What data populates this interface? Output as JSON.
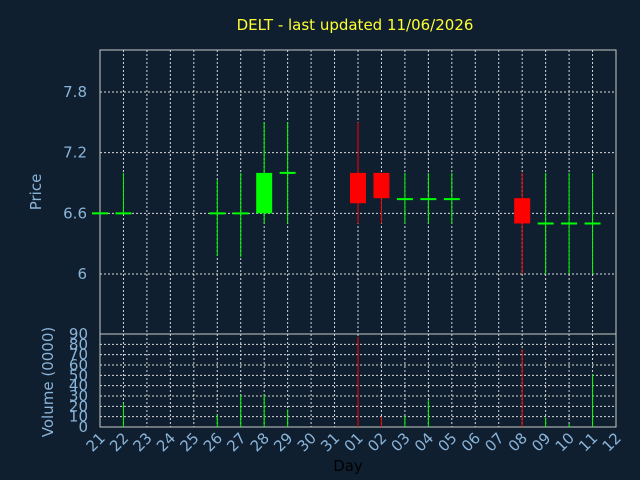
{
  "colors": {
    "background": "#0f1f30",
    "up": "#00ff00",
    "down": "#ff0000",
    "frame": "#c8c8c8",
    "grid": "#d8d8d8",
    "title": "#ffff33",
    "label": "#8ab4d8"
  },
  "chart_data": [
    {
      "type": "candlestick",
      "title": "DELT - last updated 11/06/2026",
      "ylabel": "Price",
      "ylim": [
        5.6,
        7.2
      ],
      "yticks": [
        "6",
        "6.6",
        "7.2",
        "7.8"
      ],
      "grid": true,
      "days": [
        "21",
        "22",
        "23",
        "24",
        "25",
        "26",
        "27",
        "28",
        "29",
        "30",
        "31",
        "01",
        "02",
        "03",
        "04",
        "05",
        "06",
        "07",
        "08",
        "09",
        "10",
        "11",
        "12"
      ],
      "candles": [
        {
          "day": "21",
          "open": 6.6,
          "high": 6.6,
          "low": 6.6,
          "close": 6.6
        },
        {
          "day": "22",
          "open": 6.6,
          "high": 7.0,
          "low": 6.6,
          "close": 6.6
        },
        {
          "day": "26",
          "open": 6.6,
          "high": 6.93,
          "low": 6.18,
          "close": 6.6
        },
        {
          "day": "27",
          "open": 6.6,
          "high": 7.0,
          "low": 6.17,
          "close": 6.6
        },
        {
          "day": "28",
          "open": 6.6,
          "high": 7.5,
          "low": 6.5,
          "close": 7.0
        },
        {
          "day": "29",
          "open": 7.0,
          "high": 7.5,
          "low": 6.5,
          "close": 7.0
        },
        {
          "day": "01",
          "open": 7.0,
          "high": 7.5,
          "low": 6.5,
          "close": 6.7
        },
        {
          "day": "02",
          "open": 7.0,
          "high": 7.0,
          "low": 6.5,
          "close": 6.75
        },
        {
          "day": "03",
          "open": 6.74,
          "high": 7.0,
          "low": 6.5,
          "close": 6.74
        },
        {
          "day": "04",
          "open": 6.74,
          "high": 7.0,
          "low": 6.5,
          "close": 6.74
        },
        {
          "day": "05",
          "open": 6.74,
          "high": 7.0,
          "low": 6.5,
          "close": 6.74
        },
        {
          "day": "08",
          "open": 6.75,
          "high": 7.0,
          "low": 6.0,
          "close": 6.5
        },
        {
          "day": "09",
          "open": 6.5,
          "high": 7.0,
          "low": 6.0,
          "close": 6.5
        },
        {
          "day": "10",
          "open": 6.5,
          "high": 7.0,
          "low": 6.0,
          "close": 6.5
        },
        {
          "day": "11",
          "open": 6.5,
          "high": 7.0,
          "low": 6.0,
          "close": 6.5
        }
      ]
    },
    {
      "type": "bar",
      "ylabel": "Volume (0000)",
      "xlabel": "Day",
      "ylim": [
        0,
        90
      ],
      "yticks": [
        "0",
        "10",
        "20",
        "30",
        "40",
        "50",
        "60",
        "70",
        "80",
        "90"
      ],
      "grid": true,
      "bars": [
        {
          "day": "22",
          "value": 23,
          "color": "up"
        },
        {
          "day": "26",
          "value": 12,
          "color": "up"
        },
        {
          "day": "27",
          "value": 31,
          "color": "up"
        },
        {
          "day": "28",
          "value": 31,
          "color": "up"
        },
        {
          "day": "29",
          "value": 17,
          "color": "up"
        },
        {
          "day": "01",
          "value": 87,
          "color": "down"
        },
        {
          "day": "02",
          "value": 10,
          "color": "down"
        },
        {
          "day": "03",
          "value": 11,
          "color": "up"
        },
        {
          "day": "04",
          "value": 26,
          "color": "up"
        },
        {
          "day": "08",
          "value": 75,
          "color": "down"
        },
        {
          "day": "09",
          "value": 9,
          "color": "up"
        },
        {
          "day": "10",
          "value": 3,
          "color": "up"
        },
        {
          "day": "11",
          "value": 51,
          "color": "up"
        }
      ]
    }
  ]
}
